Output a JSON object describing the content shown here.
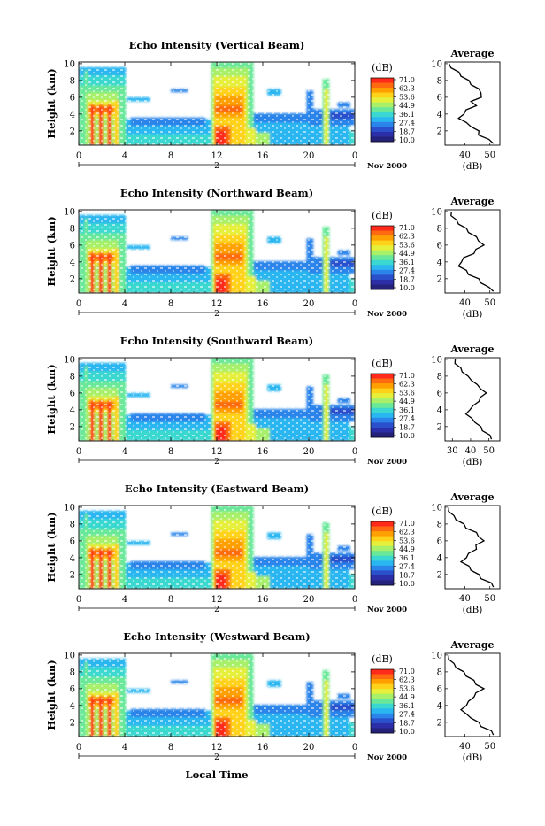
{
  "colorbar": {
    "unit": "(dB)",
    "ticks": [
      "71.0",
      "62.3",
      "53.6",
      "44.9",
      "36.1",
      "27.4",
      "18.7",
      "10.0"
    ],
    "colors": [
      "#ff2a1a",
      "#ff6a10",
      "#ffa000",
      "#ffd21a",
      "#e6ef3a",
      "#a8f06a",
      "#6ae89a",
      "#3ad8d0",
      "#2ab6f0",
      "#2a84ea",
      "#2a50cc",
      "#2c2ea8",
      "#24227a"
    ]
  },
  "date_label": "Nov 2000",
  "xlabel": "Local Time",
  "average_title": "Average",
  "average_xlabel": "(dB)",
  "chart_data": [
    {
      "type": "heatmap",
      "title": "Echo Intensity (Vertical Beam)",
      "ylabel": "Height (km)",
      "xticks": [
        "0",
        "4",
        "8",
        "12",
        "16",
        "20",
        "0"
      ],
      "xlim": [
        0,
        24
      ],
      "yticks": [
        "2",
        "4",
        "6",
        "8",
        "10"
      ],
      "ylim": [
        0.3,
        10.2
      ],
      "day_label": "2",
      "profile": {
        "xticks": [
          "40",
          "50"
        ],
        "xlim": [
          32,
          54
        ],
        "heights": [
          0.5,
          1,
          1.5,
          2,
          2.5,
          3,
          3.5,
          4,
          4.5,
          5,
          5.5,
          6,
          6.5,
          7,
          7.5,
          8,
          8.5,
          9,
          9.5,
          10
        ],
        "values": [
          52,
          49,
          46,
          45,
          43,
          40,
          38,
          39,
          41,
          44,
          43,
          46,
          47,
          45,
          43,
          41,
          39,
          37,
          35,
          33
        ]
      }
    },
    {
      "type": "heatmap",
      "title": "Echo Intensity (Northward Beam)",
      "ylabel": "Height (km)",
      "xticks": [
        "0",
        "4",
        "8",
        "12",
        "16",
        "20",
        "0"
      ],
      "xlim": [
        0,
        24
      ],
      "yticks": [
        "2",
        "4",
        "6",
        "8",
        "10"
      ],
      "ylim": [
        0.3,
        10.2
      ],
      "day_label": "2",
      "profile": {
        "xticks": [
          "40",
          "50"
        ],
        "xlim": [
          32,
          54
        ],
        "heights": [
          0.5,
          1,
          1.5,
          2,
          2.5,
          3,
          3.5,
          4,
          4.5,
          5,
          5.5,
          6,
          6.5,
          7,
          7.5,
          8,
          8.5,
          9,
          9.5,
          10
        ],
        "values": [
          52,
          49,
          47,
          45,
          42,
          40,
          38,
          38,
          40,
          43,
          45,
          47,
          46,
          44,
          42,
          40,
          38,
          36,
          35,
          34
        ]
      }
    },
    {
      "type": "heatmap",
      "title": "Echo Intensity (Southward Beam)",
      "ylabel": "Height (km)",
      "xticks": [
        "0",
        "4",
        "8",
        "12",
        "16",
        "20",
        "0"
      ],
      "xlim": [
        0,
        24
      ],
      "yticks": [
        "2",
        "4",
        "6",
        "8",
        "10"
      ],
      "ylim": [
        0.3,
        10.2
      ],
      "day_label": "2",
      "profile": {
        "xticks": [
          "30",
          "40",
          "50"
        ],
        "xlim": [
          26,
          56
        ],
        "heights": [
          0.5,
          1,
          1.5,
          2,
          2.5,
          3,
          3.5,
          4,
          4.5,
          5,
          5.5,
          6,
          6.5,
          7,
          7.5,
          8,
          8.5,
          9,
          9.5,
          10
        ],
        "values": [
          52,
          50,
          47,
          45,
          43,
          40,
          38,
          39,
          42,
          44,
          46,
          48,
          46,
          43,
          41,
          38,
          36,
          34,
          32,
          31
        ]
      }
    },
    {
      "type": "heatmap",
      "title": "Echo Intensity (Eastward Beam)",
      "ylabel": "Height (km)",
      "xticks": [
        "0",
        "4",
        "8",
        "12",
        "16",
        "20",
        "0"
      ],
      "xlim": [
        0,
        24
      ],
      "yticks": [
        "2",
        "4",
        "6",
        "8",
        "10"
      ],
      "ylim": [
        0.3,
        10.2
      ],
      "day_label": "2",
      "profile": {
        "xticks": [
          "40",
          "50"
        ],
        "xlim": [
          32,
          54
        ],
        "heights": [
          0.5,
          1,
          1.5,
          2,
          2.5,
          3,
          3.5,
          4,
          4.5,
          5,
          5.5,
          6,
          6.5,
          7,
          7.5,
          8,
          8.5,
          9,
          9.5,
          10
        ],
        "values": [
          52,
          50,
          47,
          45,
          43,
          41,
          39,
          40,
          42,
          44,
          45,
          47,
          46,
          44,
          41,
          39,
          37,
          35,
          34,
          33
        ]
      }
    },
    {
      "type": "heatmap",
      "title": "Echo Intensity (Westward Beam)",
      "ylabel": "Height (km)",
      "xticks": [
        "0",
        "4",
        "8",
        "12",
        "16",
        "20",
        "0"
      ],
      "xlim": [
        0,
        24
      ],
      "yticks": [
        "2",
        "4",
        "6",
        "8",
        "10"
      ],
      "ylim": [
        0.3,
        10.2
      ],
      "day_label": "2",
      "profile": {
        "xticks": [
          "40",
          "50"
        ],
        "xlim": [
          32,
          54
        ],
        "heights": [
          0.5,
          1,
          1.5,
          2,
          2.5,
          3,
          3.5,
          4,
          4.5,
          5,
          5.5,
          6,
          6.5,
          7,
          7.5,
          8,
          8.5,
          9,
          9.5,
          10
        ],
        "values": [
          52,
          50,
          47,
          45,
          43,
          40,
          39,
          40,
          42,
          43,
          45,
          47,
          45,
          43,
          41,
          39,
          37,
          35,
          34,
          33
        ]
      }
    }
  ]
}
